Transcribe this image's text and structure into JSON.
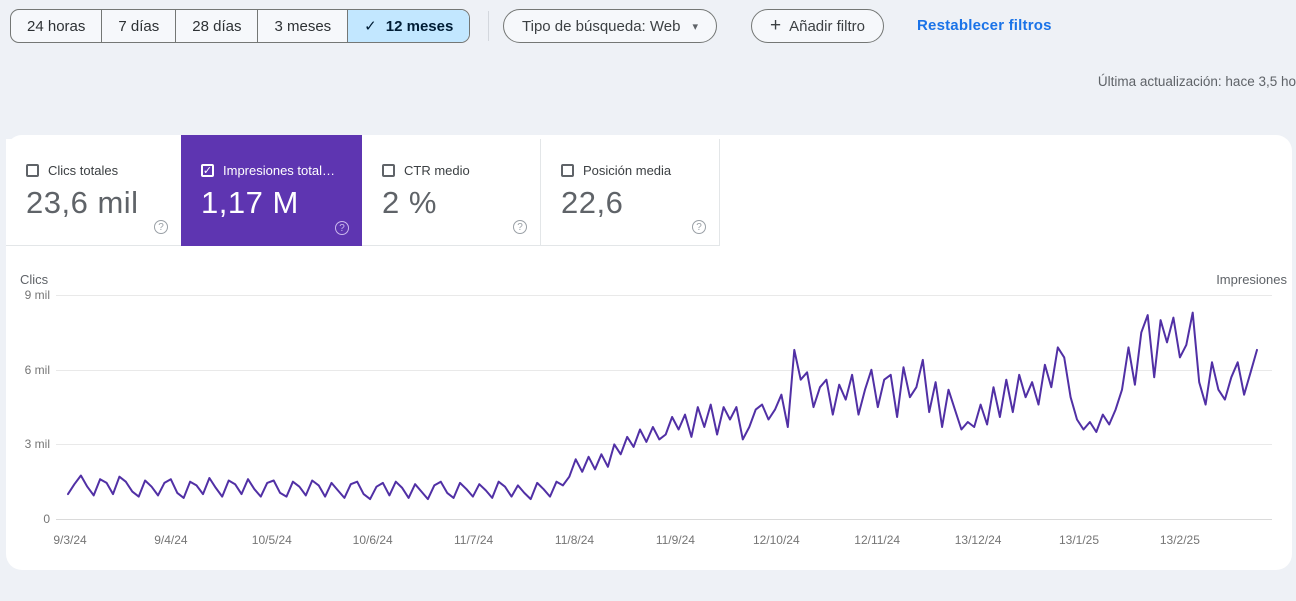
{
  "icons": {
    "check": "✓",
    "dropdown_arrow": "▾",
    "plus": "+",
    "help": "?"
  },
  "colors": {
    "page_bg": "#eef1f6",
    "selected_range_bg": "#c2e7ff",
    "selected_range_text": "#001d35",
    "link_blue": "#1a73e8",
    "impressions_purple": "#5e35b1",
    "line_purple": "#5130a5"
  },
  "toolbar": {
    "date_ranges": [
      {
        "label": "24 horas",
        "selected": false
      },
      {
        "label": "7 días",
        "selected": false
      },
      {
        "label": "28 días",
        "selected": false
      },
      {
        "label": "3 meses",
        "selected": false
      },
      {
        "label": "12 meses",
        "selected": true
      }
    ],
    "search_type_label": "Tipo de búsqueda: Web",
    "add_filter_label": "Añadir filtro",
    "reset_filters_label": "Restablecer filtros"
  },
  "status": {
    "last_updated": "Última actualización: hace 3,5 ho"
  },
  "metrics": {
    "cards": [
      {
        "label": "Clics totales",
        "value": "23,6 mil",
        "checked": false
      },
      {
        "label": "Impresiones total…",
        "value": "1,17 M",
        "checked": true
      },
      {
        "label": "CTR medio",
        "value": "2 %",
        "checked": false
      },
      {
        "label": "Posición media",
        "value": "22,6",
        "checked": false
      }
    ]
  },
  "chart_data": {
    "type": "line",
    "left_axis_label": "Clics",
    "right_axis_label": "Impresiones",
    "x_ticks": [
      "9/3/24",
      "9/4/24",
      "10/5/24",
      "10/6/24",
      "11/7/24",
      "11/8/24",
      "11/9/24",
      "12/10/24",
      "12/11/24",
      "13/12/24",
      "13/1/25",
      "13/2/25"
    ],
    "y_tick_labels": [
      "9 mil",
      "6 mil",
      "3 mil",
      "0"
    ],
    "y_tick_values": [
      9,
      6,
      3,
      0
    ],
    "ylim": [
      0,
      9
    ],
    "values_unit": "mil",
    "grid": true,
    "series": [
      {
        "name": "Impresiones",
        "color": "#5130a5",
        "values": [
          1.0,
          1.4,
          1.75,
          1.3,
          0.95,
          1.6,
          1.45,
          1.0,
          1.7,
          1.5,
          1.1,
          0.9,
          1.55,
          1.3,
          0.95,
          1.45,
          1.6,
          1.05,
          0.85,
          1.5,
          1.35,
          1.0,
          1.65,
          1.25,
          0.9,
          1.55,
          1.4,
          1.0,
          1.6,
          1.2,
          0.9,
          1.45,
          1.55,
          1.05,
          0.9,
          1.5,
          1.3,
          0.95,
          1.55,
          1.35,
          0.9,
          1.45,
          1.15,
          0.85,
          1.4,
          1.5,
          1.0,
          0.8,
          1.3,
          1.45,
          0.95,
          1.5,
          1.25,
          0.85,
          1.4,
          1.1,
          0.8,
          1.35,
          1.5,
          1.05,
          0.85,
          1.45,
          1.2,
          0.9,
          1.4,
          1.15,
          0.85,
          1.5,
          1.3,
          0.9,
          1.35,
          1.05,
          0.8,
          1.45,
          1.2,
          0.9,
          1.5,
          1.35,
          1.7,
          2.4,
          1.9,
          2.5,
          2.0,
          2.6,
          2.1,
          3.0,
          2.6,
          3.3,
          2.9,
          3.6,
          3.1,
          3.7,
          3.2,
          3.4,
          4.1,
          3.6,
          4.2,
          3.3,
          4.5,
          3.7,
          4.6,
          3.4,
          4.5,
          4.0,
          4.5,
          3.2,
          3.7,
          4.4,
          4.6,
          4.0,
          4.4,
          5.0,
          3.7,
          6.8,
          5.6,
          5.9,
          4.5,
          5.3,
          5.6,
          4.2,
          5.4,
          4.8,
          5.8,
          4.2,
          5.2,
          6.0,
          4.5,
          5.6,
          5.8,
          4.1,
          6.1,
          4.9,
          5.3,
          6.4,
          4.3,
          5.5,
          3.7,
          5.2,
          4.4,
          3.6,
          3.9,
          3.7,
          4.6,
          3.8,
          5.3,
          4.1,
          5.6,
          4.3,
          5.8,
          4.9,
          5.5,
          4.6,
          6.2,
          5.3,
          6.9,
          6.5,
          4.9,
          4.0,
          3.6,
          3.9,
          3.5,
          4.2,
          3.8,
          4.4,
          5.2,
          6.9,
          5.4,
          7.5,
          8.2,
          5.7,
          8.0,
          7.1,
          8.1,
          6.5,
          7.0,
          8.3,
          5.5,
          4.6,
          6.3,
          5.2,
          4.8,
          5.7,
          6.3,
          5.0,
          5.9,
          6.8
        ]
      }
    ]
  }
}
